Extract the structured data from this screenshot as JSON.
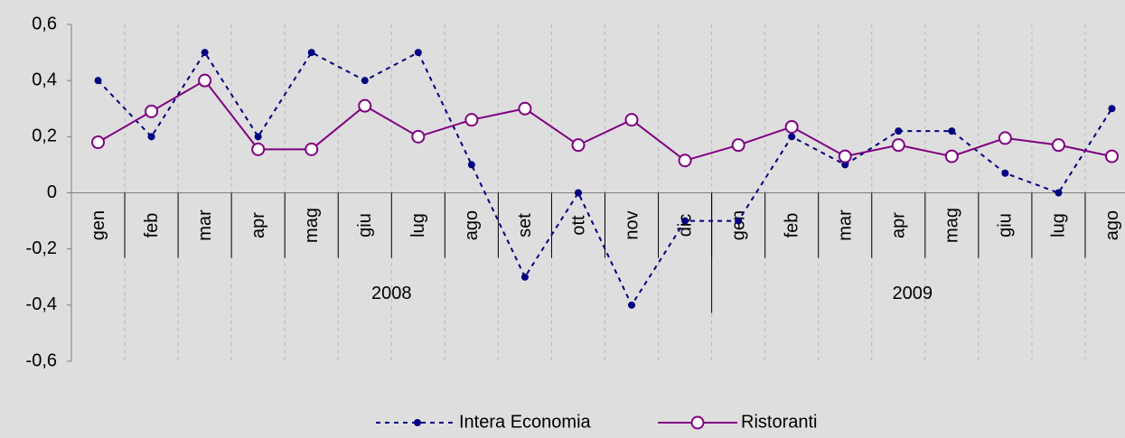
{
  "chart_data": {
    "type": "line",
    "categories": [
      "gen",
      "feb",
      "mar",
      "apr",
      "mag",
      "giu",
      "lug",
      "ago",
      "set",
      "ott",
      "nov",
      "dic",
      "gen",
      "feb",
      "mar",
      "apr",
      "mag",
      "giu",
      "lug",
      "ago"
    ],
    "x_groups": [
      {
        "label": "2008",
        "count": 12
      },
      {
        "label": "2009",
        "count": 8
      }
    ],
    "series": [
      {
        "name": "Intera Economia",
        "color": "#000080",
        "style": "dashed",
        "marker": "dot",
        "values": [
          0.4,
          0.2,
          0.5,
          0.2,
          0.5,
          0.4,
          0.5,
          0.1,
          -0.3,
          0,
          -0.4,
          -0.1,
          -0.1,
          0.2,
          0.1,
          0.22,
          0.22,
          0.07,
          0,
          0.3
        ]
      },
      {
        "name": "Ristoranti",
        "color": "#800080",
        "style": "solid",
        "marker": "open-circle",
        "values": [
          0.18,
          0.29,
          0.4,
          0.155,
          0.155,
          0.31,
          0.2,
          0.26,
          0.3,
          0.17,
          0.26,
          0.115,
          0.17,
          0.235,
          0.13,
          0.17,
          0.13,
          0.195,
          0.17,
          0.13
        ]
      }
    ],
    "ylim": [
      -0.6,
      0.6
    ],
    "yticks": [
      {
        "value": -0.6,
        "label": "-0,6"
      },
      {
        "value": -0.4,
        "label": "-0,4"
      },
      {
        "value": -0.2,
        "label": "-0,2"
      },
      0,
      {
        "value": 0.2,
        "label": "0,2"
      },
      {
        "value": 0.4,
        "label": "0,4"
      },
      {
        "value": 0.6,
        "label": "0,6"
      }
    ],
    "legend": "bottom"
  }
}
